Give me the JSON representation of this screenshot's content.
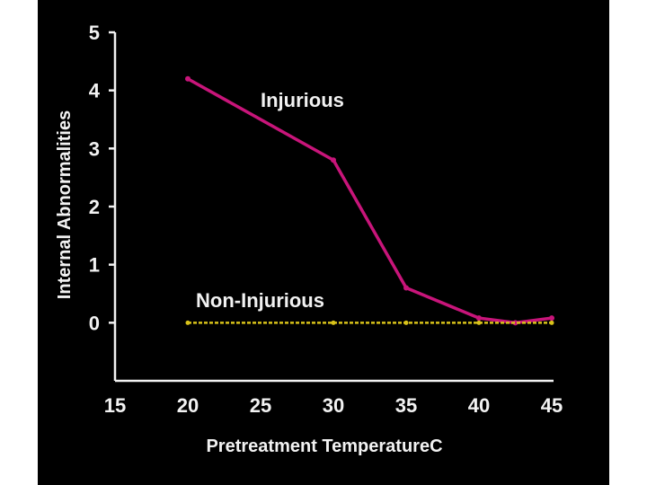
{
  "chart_data": {
    "type": "line",
    "xlabel": "Pretreatment TemperatureC",
    "ylabel": "Internal Abnormalities",
    "xlim": [
      15,
      45
    ],
    "ylim": [
      -1,
      5
    ],
    "xticks": [
      15,
      20,
      25,
      30,
      35,
      40,
      45
    ],
    "yticks": [
      0,
      1,
      2,
      3,
      4,
      5
    ],
    "grid": false,
    "series": [
      {
        "name": "Injurious",
        "color": "#c8157a",
        "style": "solid",
        "x": [
          20,
          30,
          35,
          40,
          42.5,
          45
        ],
        "values": [
          4.2,
          2.8,
          0.6,
          0.08,
          0.0,
          0.08
        ]
      },
      {
        "name": "Non-Injurious",
        "color": "#d8c21a",
        "style": "dashed",
        "x": [
          20,
          30,
          35,
          40,
          45
        ],
        "values": [
          0,
          0,
          0,
          0,
          0
        ]
      }
    ]
  },
  "colors": {
    "background": "#000000",
    "axis": "#f2f2f2",
    "text": "#f2f2f2"
  }
}
